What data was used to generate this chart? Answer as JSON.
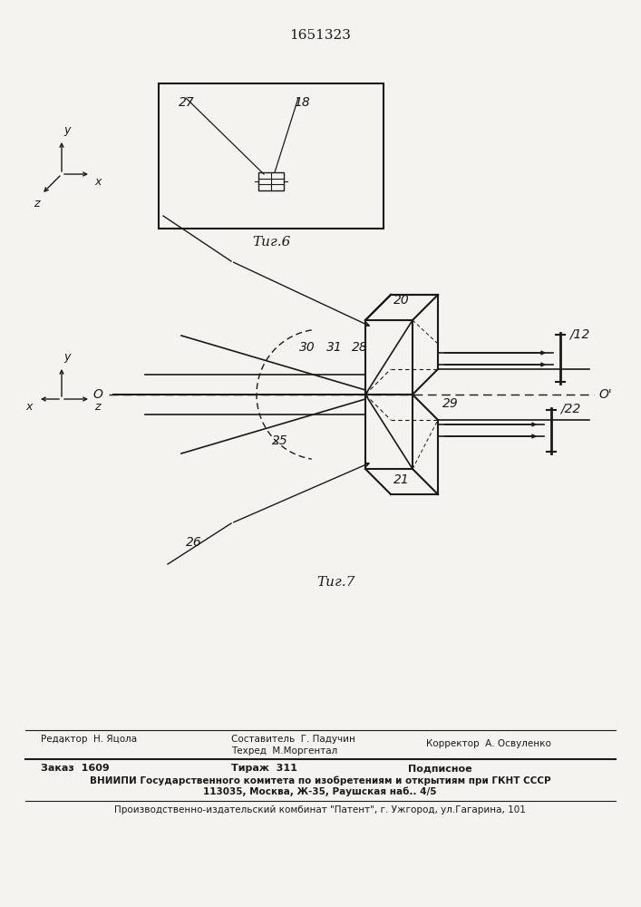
{
  "patent_number": "1651323",
  "fig6_caption": "Τиг.6",
  "fig7_caption": "Τиг.7",
  "background_color": "#f5f3f0",
  "line_color": "#1a1a1a",
  "footer_editor": "Редактор  Н. Яцола",
  "footer_composer1": "Составитель  Г. Падучин",
  "footer_techred": "Техред  М.Моргентал",
  "footer_corrector": "Корректор  А. Освуленко",
  "footer_order": "Заказ  1609",
  "footer_tirazh": "Тираж  311",
  "footer_podpisnoe": "Подписное",
  "footer_vniiipi": "ВНИИПИ Государственного комитета по изобретениям и открытиям при ГКНТ СССР",
  "footer_addr": "113035, Москва, Ж-35, Раушская наб.. 4/5",
  "footer_patent": "Производственно-издательский комбинат \"Патент\", г. Ужгород, ул.Гагарина, 101"
}
